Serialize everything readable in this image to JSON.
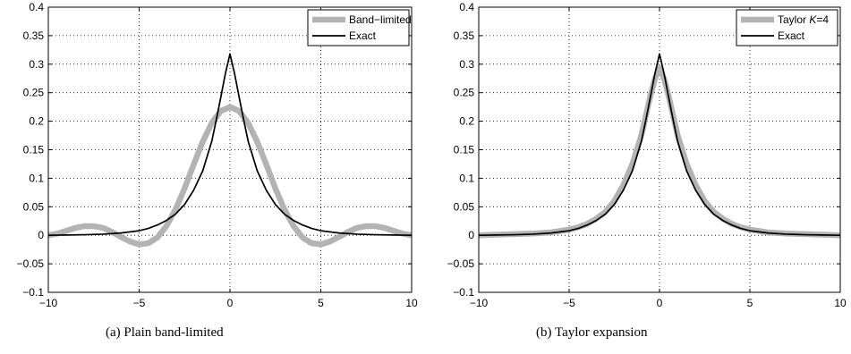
{
  "captions": {
    "a": "(a)  Plain band-limited",
    "b": "(b)  Taylor expansion"
  },
  "colors": {
    "approx": "#b3b3b3",
    "exact": "#000000",
    "grid": "#000000"
  },
  "chart_data": [
    {
      "type": "line",
      "xlim": [
        -10,
        10
      ],
      "ylim": [
        -0.1,
        0.4
      ],
      "xticks": [
        -10,
        -5,
        0,
        5,
        10
      ],
      "xtick_labels": [
        "−10",
        "−5",
        "0",
        "5",
        "10"
      ],
      "yticks": [
        -0.1,
        -0.05,
        0,
        0.05,
        0.1,
        0.15,
        0.2,
        0.25,
        0.3,
        0.35,
        0.4
      ],
      "ytick_labels": [
        "−0.1",
        "−0.05",
        "0",
        "0.05",
        "0.1",
        "0.15",
        "0.2",
        "0.25",
        "0.3",
        "0.35",
        "0.4"
      ],
      "grid": true,
      "legend_position": "top-right",
      "series": [
        {
          "name": "Band−limited",
          "style": "thick-gray",
          "x": [
            -10,
            -9.5,
            -9,
            -8.5,
            -8,
            -7.5,
            -7,
            -6.5,
            -6,
            -5.5,
            -5,
            -4.5,
            -4,
            -3.5,
            -3,
            -2.5,
            -2,
            -1.5,
            -1,
            -0.5,
            0,
            0.5,
            1,
            1.5,
            2,
            2.5,
            3,
            3.5,
            4,
            4.5,
            5,
            5.5,
            6,
            6.5,
            7,
            7.5,
            8,
            8.5,
            9,
            9.5,
            10
          ],
          "y": [
            0.0,
            0.003,
            0.008,
            0.013,
            0.016,
            0.016,
            0.013,
            0.006,
            -0.003,
            -0.011,
            -0.016,
            -0.014,
            -0.004,
            0.016,
            0.045,
            0.082,
            0.124,
            0.164,
            0.197,
            0.218,
            0.225,
            0.218,
            0.197,
            0.164,
            0.124,
            0.082,
            0.045,
            0.016,
            -0.004,
            -0.014,
            -0.016,
            -0.011,
            -0.003,
            0.006,
            0.013,
            0.016,
            0.016,
            0.013,
            0.008,
            0.003,
            0.0
          ]
        },
        {
          "name": "Exact",
          "style": "thin-black",
          "x": [
            -10,
            -9,
            -8,
            -7,
            -6,
            -5,
            -4.5,
            -4,
            -3.5,
            -3,
            -2.5,
            -2,
            -1.5,
            -1,
            -0.75,
            -0.5,
            -0.25,
            0,
            0.25,
            0.5,
            0.75,
            1,
            1.5,
            2,
            2.5,
            3,
            3.5,
            4,
            4.5,
            5,
            6,
            7,
            8,
            9,
            10
          ],
          "y": [
            0.0,
            0.0005,
            0.001,
            0.002,
            0.004,
            0.008,
            0.012,
            0.018,
            0.026,
            0.037,
            0.054,
            0.079,
            0.113,
            0.165,
            0.203,
            0.243,
            0.284,
            0.318,
            0.284,
            0.243,
            0.203,
            0.165,
            0.113,
            0.079,
            0.054,
            0.037,
            0.026,
            0.018,
            0.012,
            0.008,
            0.004,
            0.002,
            0.001,
            0.0005,
            0.0
          ]
        }
      ]
    },
    {
      "type": "line",
      "xlim": [
        -10,
        10
      ],
      "ylim": [
        -0.1,
        0.4
      ],
      "xticks": [
        -10,
        -5,
        0,
        5,
        10
      ],
      "xtick_labels": [
        "−10",
        "−5",
        "0",
        "5",
        "10"
      ],
      "yticks": [
        -0.1,
        -0.05,
        0,
        0.05,
        0.1,
        0.15,
        0.2,
        0.25,
        0.3,
        0.35,
        0.4
      ],
      "ytick_labels": [
        "−0.1",
        "−0.05",
        "0",
        "0.05",
        "0.1",
        "0.15",
        "0.2",
        "0.25",
        "0.3",
        "0.35",
        "0.4"
      ],
      "grid": true,
      "legend_position": "top-right",
      "series": [
        {
          "name": "Taylor K=4",
          "style": "thick-gray",
          "x": [
            -10,
            -9,
            -8,
            -7,
            -6,
            -5,
            -4.5,
            -4,
            -3.5,
            -3,
            -2.5,
            -2,
            -1.5,
            -1,
            -0.75,
            -0.5,
            -0.25,
            0,
            0.25,
            0.5,
            0.75,
            1,
            1.5,
            2,
            2.5,
            3,
            3.5,
            4,
            4.5,
            5,
            6,
            7,
            8,
            9,
            10
          ],
          "y": [
            0.0,
            0.001,
            0.002,
            0.003,
            0.005,
            0.01,
            0.014,
            0.02,
            0.029,
            0.041,
            0.06,
            0.088,
            0.125,
            0.176,
            0.21,
            0.245,
            0.275,
            0.293,
            0.275,
            0.245,
            0.21,
            0.176,
            0.125,
            0.088,
            0.06,
            0.041,
            0.029,
            0.02,
            0.014,
            0.01,
            0.005,
            0.003,
            0.002,
            0.001,
            0.0
          ]
        },
        {
          "name": "Exact",
          "style": "thin-black",
          "x": [
            -10,
            -9,
            -8,
            -7,
            -6,
            -5,
            -4.5,
            -4,
            -3.5,
            -3,
            -2.5,
            -2,
            -1.5,
            -1,
            -0.75,
            -0.5,
            -0.25,
            0,
            0.25,
            0.5,
            0.75,
            1,
            1.5,
            2,
            2.5,
            3,
            3.5,
            4,
            4.5,
            5,
            6,
            7,
            8,
            9,
            10
          ],
          "y": [
            0.0,
            0.0005,
            0.001,
            0.002,
            0.004,
            0.008,
            0.012,
            0.018,
            0.026,
            0.037,
            0.054,
            0.079,
            0.113,
            0.165,
            0.203,
            0.243,
            0.284,
            0.318,
            0.284,
            0.243,
            0.203,
            0.165,
            0.113,
            0.079,
            0.054,
            0.037,
            0.026,
            0.018,
            0.012,
            0.008,
            0.004,
            0.002,
            0.001,
            0.0005,
            0.0
          ]
        }
      ]
    }
  ]
}
